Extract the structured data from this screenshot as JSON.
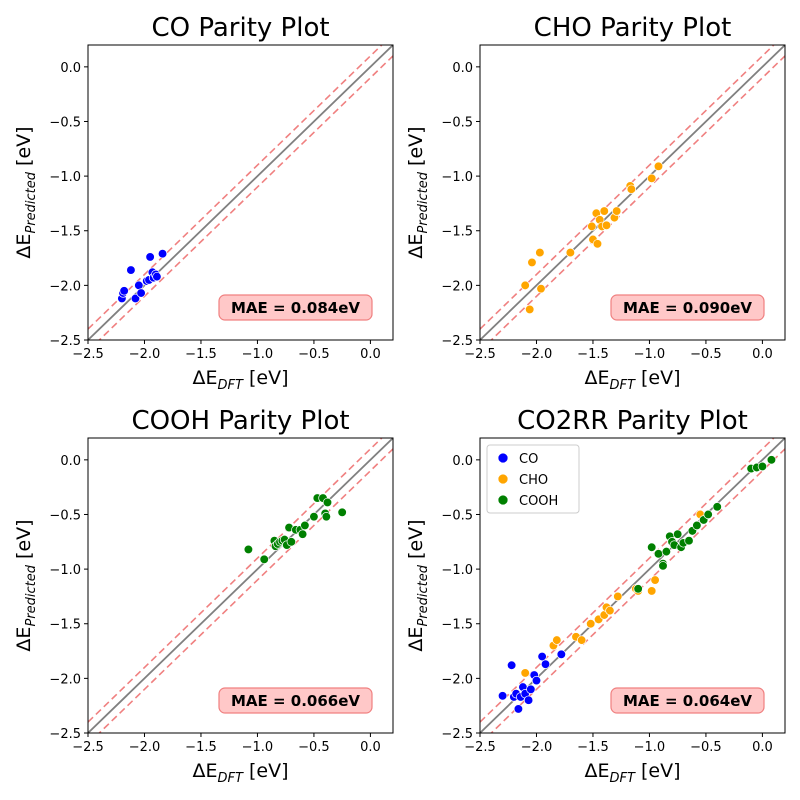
{
  "chart_data": [
    {
      "type": "scatter",
      "title": "CO Parity Plot",
      "xlabel_base": "ΔE",
      "xlabel_sub": "DFT",
      "xlabel_unit": " [eV]",
      "ylabel_base": "ΔE",
      "ylabel_sub": "Predicted",
      "ylabel_unit": " [eV]",
      "xlim": [
        -2.5,
        0.2
      ],
      "ylim": [
        -2.5,
        0.2
      ],
      "xticks": [
        -2.5,
        -2.0,
        -1.5,
        -1.0,
        -0.5,
        0.0
      ],
      "yticks": [
        -2.5,
        -2.0,
        -1.5,
        -1.0,
        -0.5,
        0.0
      ],
      "tick_labels": [
        "−2.5",
        "−2.0",
        "−1.5",
        "−1.0",
        "−0.5",
        "0.0"
      ],
      "mae": 0.084,
      "mae_label": "MAE = 0.084eV",
      "series": [
        {
          "name": "CO",
          "color": "#0000ff",
          "points": [
            [
              -2.2,
              -2.12
            ],
            [
              -2.19,
              -2.07
            ],
            [
              -2.18,
              -2.05
            ],
            [
              -2.12,
              -1.86
            ],
            [
              -2.08,
              -2.12
            ],
            [
              -2.05,
              -2.0
            ],
            [
              -2.03,
              -2.07
            ],
            [
              -1.98,
              -1.96
            ],
            [
              -1.96,
              -1.95
            ],
            [
              -1.95,
              -1.74
            ],
            [
              -1.93,
              -1.88
            ],
            [
              -1.92,
              -1.93
            ],
            [
              -1.9,
              -1.9
            ],
            [
              -1.89,
              -1.92
            ],
            [
              -1.84,
              -1.71
            ]
          ]
        }
      ]
    },
    {
      "type": "scatter",
      "title": "CHO Parity Plot",
      "xlabel_base": "ΔE",
      "xlabel_sub": "DFT",
      "xlabel_unit": " [eV]",
      "ylabel_base": "ΔE",
      "ylabel_sub": "Predicted",
      "ylabel_unit": " [eV]",
      "xlim": [
        -2.5,
        0.2
      ],
      "ylim": [
        -2.5,
        0.2
      ],
      "xticks": [
        -2.5,
        -2.0,
        -1.5,
        -1.0,
        -0.5,
        0.0
      ],
      "yticks": [
        -2.5,
        -2.0,
        -1.5,
        -1.0,
        -0.5,
        0.0
      ],
      "tick_labels": [
        "−2.5",
        "−2.0",
        "−1.5",
        "−1.0",
        "−0.5",
        "0.0"
      ],
      "mae": 0.09,
      "mae_label": "MAE = 0.090eV",
      "series": [
        {
          "name": "CHO",
          "color": "#ffa500",
          "points": [
            [
              -2.1,
              -2.0
            ],
            [
              -2.06,
              -2.22
            ],
            [
              -2.04,
              -1.79
            ],
            [
              -1.97,
              -1.7
            ],
            [
              -1.96,
              -2.03
            ],
            [
              -1.7,
              -1.7
            ],
            [
              -1.51,
              -1.46
            ],
            [
              -1.5,
              -1.58
            ],
            [
              -1.47,
              -1.34
            ],
            [
              -1.46,
              -1.62
            ],
            [
              -1.44,
              -1.4
            ],
            [
              -1.42,
              -1.46
            ],
            [
              -1.4,
              -1.32
            ],
            [
              -1.38,
              -1.45
            ],
            [
              -1.31,
              -1.38
            ],
            [
              -1.29,
              -1.32
            ],
            [
              -1.17,
              -1.09
            ],
            [
              -1.16,
              -1.12
            ],
            [
              -0.98,
              -1.02
            ],
            [
              -0.92,
              -0.91
            ]
          ]
        }
      ]
    },
    {
      "type": "scatter",
      "title": "COOH Parity Plot",
      "xlabel_base": "ΔE",
      "xlabel_sub": "DFT",
      "xlabel_unit": " [eV]",
      "ylabel_base": "ΔE",
      "ylabel_sub": "Predicted",
      "ylabel_unit": " [eV]",
      "xlim": [
        -2.5,
        0.2
      ],
      "ylim": [
        -2.5,
        0.2
      ],
      "xticks": [
        -2.5,
        -2.0,
        -1.5,
        -1.0,
        -0.5,
        0.0
      ],
      "yticks": [
        -2.5,
        -2.0,
        -1.5,
        -1.0,
        -0.5,
        0.0
      ],
      "tick_labels": [
        "−2.5",
        "−2.0",
        "−1.5",
        "−1.0",
        "−0.5",
        "0.0"
      ],
      "mae": 0.066,
      "mae_label": "MAE = 0.066eV",
      "series": [
        {
          "name": "COOH",
          "color": "#008000",
          "points": [
            [
              -1.08,
              -0.82
            ],
            [
              -0.94,
              -0.91
            ],
            [
              -0.85,
              -0.74
            ],
            [
              -0.84,
              -0.79
            ],
            [
              -0.82,
              -0.77
            ],
            [
              -0.8,
              -0.75
            ],
            [
              -0.78,
              -0.74
            ],
            [
              -0.76,
              -0.73
            ],
            [
              -0.74,
              -0.78
            ],
            [
              -0.72,
              -0.62
            ],
            [
              -0.7,
              -0.75
            ],
            [
              -0.66,
              -0.64
            ],
            [
              -0.62,
              -0.64
            ],
            [
              -0.6,
              -0.68
            ],
            [
              -0.58,
              -0.6
            ],
            [
              -0.5,
              -0.52
            ],
            [
              -0.47,
              -0.35
            ],
            [
              -0.42,
              -0.35
            ],
            [
              -0.4,
              -0.49
            ],
            [
              -0.39,
              -0.52
            ],
            [
              -0.38,
              -0.39
            ],
            [
              -0.25,
              -0.48
            ]
          ]
        }
      ]
    },
    {
      "type": "scatter",
      "title": "CO2RR Parity Plot",
      "xlabel_base": "ΔE",
      "xlabel_sub": "DFT",
      "xlabel_unit": " [eV]",
      "ylabel_base": "ΔE",
      "ylabel_sub": "Predicted",
      "ylabel_unit": " [eV]",
      "xlim": [
        -2.5,
        0.2
      ],
      "ylim": [
        -2.5,
        0.2
      ],
      "xticks": [
        -2.5,
        -2.0,
        -1.5,
        -1.0,
        -0.5,
        0.0
      ],
      "yticks": [
        -2.5,
        -2.0,
        -1.5,
        -1.0,
        -0.5,
        0.0
      ],
      "tick_labels": [
        "−2.5",
        "−2.0",
        "−1.5",
        "−1.0",
        "−0.5",
        "0.0"
      ],
      "mae": 0.064,
      "mae_label": "MAE = 0.064eV",
      "legend": {
        "location": "upper-left",
        "entries": [
          "CO",
          "CHO",
          "COOH"
        ]
      },
      "series": [
        {
          "name": "CO",
          "color": "#0000ff",
          "points": [
            [
              -2.3,
              -2.16
            ],
            [
              -2.22,
              -1.88
            ],
            [
              -2.2,
              -2.17
            ],
            [
              -2.18,
              -2.14
            ],
            [
              -2.16,
              -2.28
            ],
            [
              -2.14,
              -2.17
            ],
            [
              -2.12,
              -2.08
            ],
            [
              -2.1,
              -2.14
            ],
            [
              -2.07,
              -2.2
            ],
            [
              -2.05,
              -2.1
            ],
            [
              -2.02,
              -1.97
            ],
            [
              -2.0,
              -2.02
            ],
            [
              -1.95,
              -1.8
            ],
            [
              -1.92,
              -1.87
            ],
            [
              -1.78,
              -1.78
            ]
          ]
        },
        {
          "name": "CHO",
          "color": "#ffa500",
          "points": [
            [
              -2.1,
              -1.95
            ],
            [
              -1.85,
              -1.7
            ],
            [
              -1.82,
              -1.65
            ],
            [
              -1.65,
              -1.62
            ],
            [
              -1.6,
              -1.65
            ],
            [
              -1.52,
              -1.5
            ],
            [
              -1.45,
              -1.46
            ],
            [
              -1.4,
              -1.42
            ],
            [
              -1.38,
              -1.35
            ],
            [
              -1.35,
              -1.38
            ],
            [
              -1.28,
              -1.25
            ],
            [
              -1.12,
              -1.18
            ],
            [
              -1.1,
              -1.2
            ],
            [
              -0.98,
              -1.2
            ],
            [
              -0.95,
              -1.1
            ],
            [
              -0.55,
              -0.5
            ]
          ]
        },
        {
          "name": "COOH",
          "color": "#008000",
          "points": [
            [
              -0.98,
              -0.8
            ],
            [
              -0.92,
              -0.86
            ],
            [
              -0.88,
              -0.95
            ],
            [
              -0.85,
              -0.84
            ],
            [
              -0.82,
              -0.7
            ],
            [
              -0.8,
              -0.75
            ],
            [
              -0.78,
              -0.78
            ],
            [
              -0.75,
              -0.68
            ],
            [
              -0.72,
              -0.8
            ],
            [
              -0.7,
              -0.76
            ],
            [
              -0.65,
              -0.74
            ],
            [
              -0.62,
              -0.65
            ],
            [
              -0.58,
              -0.6
            ],
            [
              -0.52,
              -0.55
            ],
            [
              -0.48,
              -0.5
            ],
            [
              -0.4,
              -0.43
            ],
            [
              -0.1,
              -0.08
            ],
            [
              -0.05,
              -0.07
            ],
            [
              0.0,
              -0.06
            ],
            [
              0.08,
              0.0
            ],
            [
              -1.1,
              -1.18
            ],
            [
              -0.88,
              -0.97
            ]
          ]
        }
      ]
    }
  ],
  "reference_lines": {
    "parity_color": "#808080",
    "tolerance_color": "#f08080",
    "tolerance_offset": 0.1
  },
  "mae_box": {
    "fill": "#ffc8c8",
    "stroke": "#f08080"
  }
}
